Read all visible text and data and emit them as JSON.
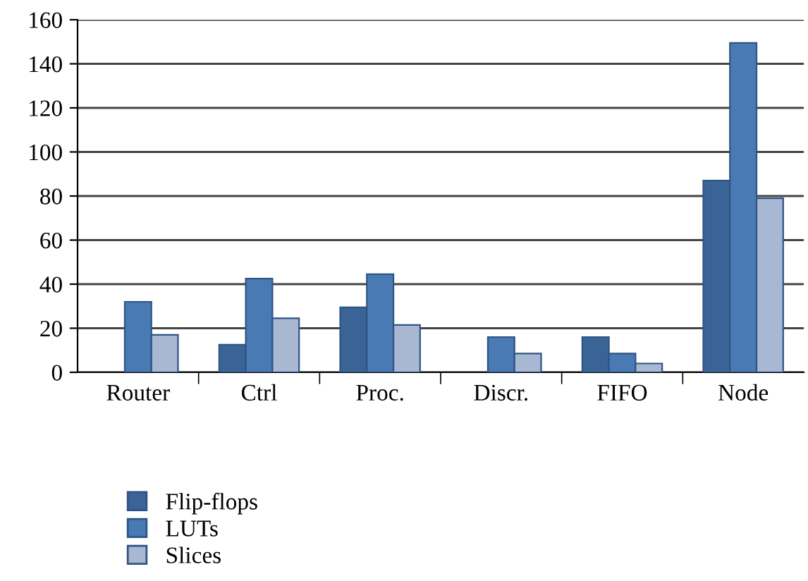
{
  "chart_data": {
    "type": "bar",
    "categories": [
      "Router",
      "Ctrl",
      "Proc.",
      "Discr.",
      "FIFO",
      "Node"
    ],
    "series": [
      {
        "name": "Flip-flops",
        "color": "#3b6496",
        "values": [
          null,
          12.5,
          29.5,
          null,
          16,
          87
        ]
      },
      {
        "name": "LUTs",
        "color": "#4a7ab4",
        "values": [
          32,
          42.5,
          44.5,
          16,
          8.5,
          149.5
        ]
      },
      {
        "name": "Slices",
        "color": "#a8b8d2",
        "values": [
          17,
          24.5,
          21.5,
          8.5,
          4,
          79
        ]
      }
    ],
    "ylim": [
      0,
      160
    ],
    "yticks": [
      0,
      20,
      40,
      60,
      80,
      100,
      120,
      140,
      160
    ],
    "grid": "y",
    "legend": "bottom left"
  }
}
